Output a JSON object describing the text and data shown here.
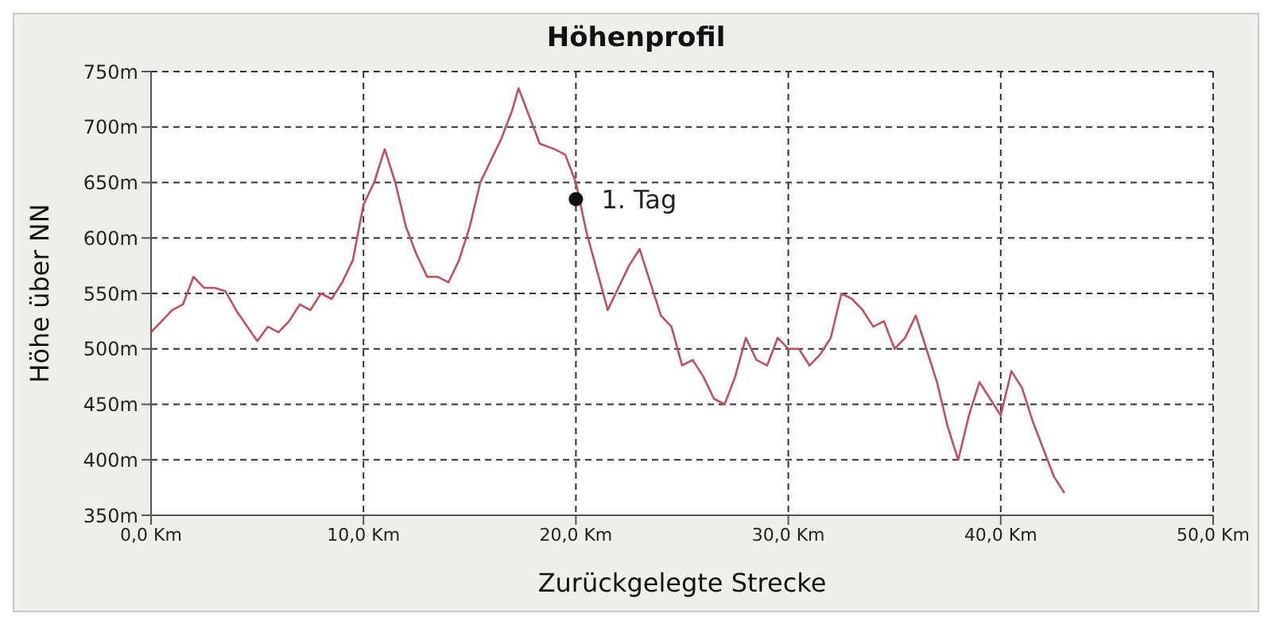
{
  "chart_data": {
    "type": "line",
    "title": "Höhenprofil",
    "xlabel": "Zurückgelegte Strecke",
    "ylabel": "Höhe über NN",
    "xlim": [
      0,
      50
    ],
    "xticks": [
      {
        "value": 0,
        "label": "0,0 Km"
      },
      {
        "value": 10,
        "label": "10,0 Km"
      },
      {
        "value": 20,
        "label": "20,0 Km"
      },
      {
        "value": 30,
        "label": "30,0 Km"
      },
      {
        "value": 40,
        "label": "40,0 Km"
      },
      {
        "value": 50,
        "label": "50,0 Km"
      }
    ],
    "ylim": [
      350,
      750
    ],
    "yticks": [
      {
        "value": 350,
        "label": "350m"
      },
      {
        "value": 400,
        "label": "400m"
      },
      {
        "value": 450,
        "label": "450m"
      },
      {
        "value": 500,
        "label": "500m"
      },
      {
        "value": 550,
        "label": "550m"
      },
      {
        "value": 600,
        "label": "600m"
      },
      {
        "value": 650,
        "label": "650m"
      },
      {
        "value": 700,
        "label": "700m"
      },
      {
        "value": 750,
        "label": "750m"
      }
    ],
    "grid": true,
    "series": [
      {
        "color": "#c0505a",
        "x": [
          0,
          0.5,
          1,
          1.5,
          2,
          2.5,
          3,
          3.5,
          4,
          5,
          5.5,
          6,
          6.5,
          7,
          7.5,
          8,
          8.5,
          9,
          9.5,
          10,
          10.5,
          11,
          11.5,
          12,
          12.5,
          13,
          13.5,
          14,
          14.5,
          15,
          15.5,
          16,
          16.5,
          17,
          17.3,
          17.8,
          18.3,
          19,
          19.5,
          20,
          20.5,
          21,
          21.5,
          22,
          22.5,
          23,
          23.5,
          24,
          24.5,
          25,
          25.5,
          26,
          26.5,
          27,
          27.5,
          28,
          28.5,
          29,
          29.5,
          30,
          30.5,
          31,
          31.5,
          32,
          32.5,
          33,
          33.5,
          34,
          34.5,
          35,
          35.5,
          36,
          36.5,
          37,
          37.5,
          38,
          38.5,
          39,
          39.5,
          40,
          40.5,
          41,
          41.5,
          42,
          42.5,
          43
        ],
        "values": [
          515,
          525,
          535,
          540,
          565,
          555,
          555,
          552,
          535,
          507,
          520,
          515,
          525,
          540,
          535,
          550,
          545,
          560,
          580,
          630,
          650,
          680,
          650,
          610,
          585,
          565,
          565,
          560,
          580,
          610,
          650,
          670,
          690,
          715,
          735,
          710,
          685,
          680,
          675,
          650,
          605,
          570,
          535,
          555,
          575,
          590,
          560,
          530,
          520,
          485,
          490,
          475,
          455,
          450,
          475,
          510,
          490,
          485,
          510,
          500,
          500,
          485,
          495,
          510,
          550,
          545,
          535,
          520,
          525,
          500,
          510,
          530,
          500,
          470,
          430,
          400,
          440,
          470,
          455,
          440,
          480,
          465,
          435,
          410,
          385,
          370
        ],
        "marker": "none"
      },
      {
        "type": "scatter",
        "color": "#111111",
        "x": [
          20
        ],
        "values": [
          635
        ],
        "marker": "circle"
      }
    ],
    "annotations": [
      {
        "text": "1. Tag",
        "x": 20,
        "y": 635
      }
    ]
  }
}
